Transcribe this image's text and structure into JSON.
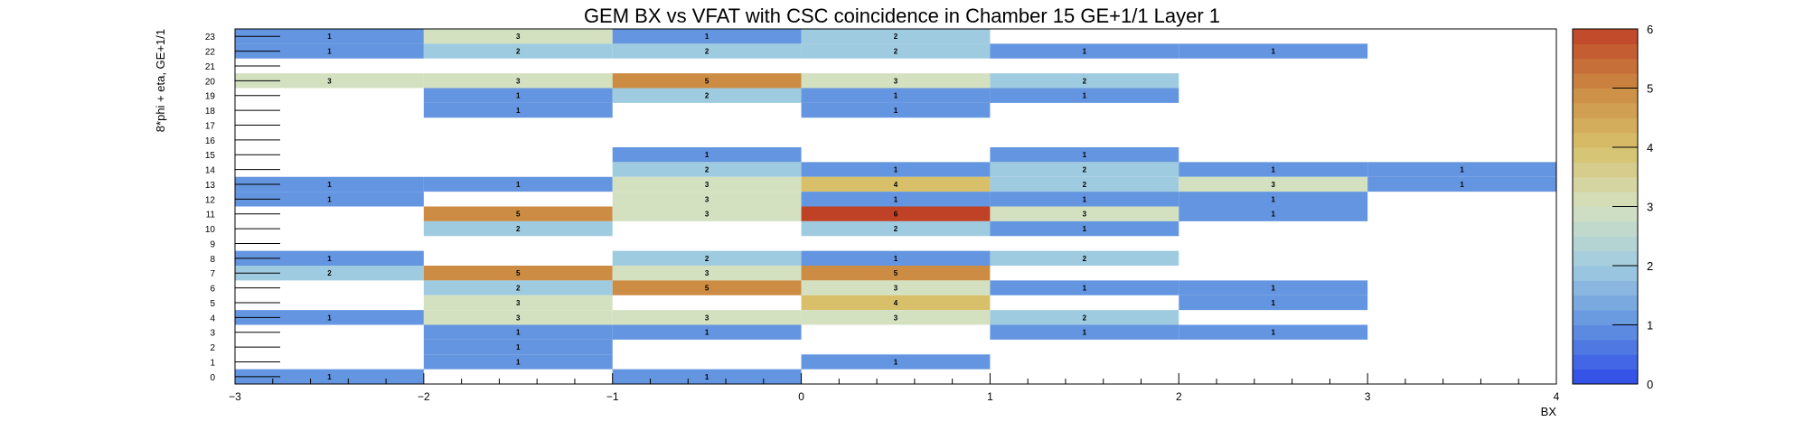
{
  "chart_data": {
    "type": "heatmap",
    "title": "GEM BX vs VFAT with CSC coincidence in Chamber 15 GE+1/1 Layer 1",
    "xlabel": "BX",
    "ylabel": "8*phi + eta, GE+1/1",
    "xlim": [
      -3,
      4
    ],
    "ylim": [
      0,
      23
    ],
    "x_tick_labels": [
      "−3",
      "−2",
      "−1",
      "0",
      "1",
      "2",
      "3",
      "4"
    ],
    "y_tick_labels": [
      "0",
      "1",
      "2",
      "3",
      "4",
      "5",
      "6",
      "7",
      "8",
      "9",
      "10",
      "11",
      "12",
      "13",
      "14",
      "15",
      "16",
      "17",
      "18",
      "19",
      "20",
      "21",
      "22",
      "23"
    ],
    "bin_width": 1,
    "colorbar": {
      "min": 0,
      "max": 6,
      "tick_labels": [
        "0",
        "1",
        "2",
        "3",
        "4",
        "5",
        "6"
      ]
    },
    "colors": {
      "c1": "#6495e0",
      "c2": "#9fcbe0",
      "c3": "#d4e1c1",
      "c4": "#d8c06a",
      "c5": "#cc8c44",
      "c6": "#bf4226"
    },
    "cells": [
      {
        "x": -2.5,
        "y": 23,
        "value": 1
      },
      {
        "x": -1.5,
        "y": 23,
        "value": 3
      },
      {
        "x": -0.5,
        "y": 23,
        "value": 1
      },
      {
        "x": 0.5,
        "y": 23,
        "value": 2
      },
      {
        "x": -2.5,
        "y": 22,
        "value": 1
      },
      {
        "x": -1.5,
        "y": 22,
        "value": 2
      },
      {
        "x": -0.5,
        "y": 22,
        "value": 2
      },
      {
        "x": 0.5,
        "y": 22,
        "value": 2
      },
      {
        "x": 1.5,
        "y": 22,
        "value": 1
      },
      {
        "x": 2.5,
        "y": 22,
        "value": 1
      },
      {
        "x": -2.5,
        "y": 20,
        "value": 3
      },
      {
        "x": -1.5,
        "y": 20,
        "value": 3
      },
      {
        "x": -0.5,
        "y": 20,
        "value": 5
      },
      {
        "x": 0.5,
        "y": 20,
        "value": 3
      },
      {
        "x": 1.5,
        "y": 20,
        "value": 2
      },
      {
        "x": -1.5,
        "y": 19,
        "value": 1
      },
      {
        "x": -0.5,
        "y": 19,
        "value": 2
      },
      {
        "x": 0.5,
        "y": 19,
        "value": 1
      },
      {
        "x": 1.5,
        "y": 19,
        "value": 1
      },
      {
        "x": -1.5,
        "y": 18,
        "value": 1
      },
      {
        "x": 0.5,
        "y": 18,
        "value": 1
      },
      {
        "x": -0.5,
        "y": 15,
        "value": 1
      },
      {
        "x": 1.5,
        "y": 15,
        "value": 1
      },
      {
        "x": -0.5,
        "y": 14,
        "value": 2
      },
      {
        "x": 0.5,
        "y": 14,
        "value": 1
      },
      {
        "x": 1.5,
        "y": 14,
        "value": 2
      },
      {
        "x": 2.5,
        "y": 14,
        "value": 1
      },
      {
        "x": 3.5,
        "y": 14,
        "value": 1
      },
      {
        "x": -2.5,
        "y": 13,
        "value": 1
      },
      {
        "x": -1.5,
        "y": 13,
        "value": 1
      },
      {
        "x": -0.5,
        "y": 13,
        "value": 3
      },
      {
        "x": 0.5,
        "y": 13,
        "value": 4
      },
      {
        "x": 1.5,
        "y": 13,
        "value": 2
      },
      {
        "x": 2.5,
        "y": 13,
        "value": 3
      },
      {
        "x": 3.5,
        "y": 13,
        "value": 1
      },
      {
        "x": -2.5,
        "y": 12,
        "value": 1
      },
      {
        "x": -0.5,
        "y": 12,
        "value": 3
      },
      {
        "x": 0.5,
        "y": 12,
        "value": 1
      },
      {
        "x": 1.5,
        "y": 12,
        "value": 1
      },
      {
        "x": 2.5,
        "y": 12,
        "value": 1
      },
      {
        "x": -1.5,
        "y": 11,
        "value": 5
      },
      {
        "x": -0.5,
        "y": 11,
        "value": 3
      },
      {
        "x": 0.5,
        "y": 11,
        "value": 6
      },
      {
        "x": 1.5,
        "y": 11,
        "value": 3
      },
      {
        "x": 2.5,
        "y": 11,
        "value": 1
      },
      {
        "x": -1.5,
        "y": 10,
        "value": 2
      },
      {
        "x": 0.5,
        "y": 10,
        "value": 2
      },
      {
        "x": 1.5,
        "y": 10,
        "value": 1
      },
      {
        "x": -2.5,
        "y": 8,
        "value": 1
      },
      {
        "x": -0.5,
        "y": 8,
        "value": 2
      },
      {
        "x": 0.5,
        "y": 8,
        "value": 1
      },
      {
        "x": 1.5,
        "y": 8,
        "value": 2
      },
      {
        "x": -2.5,
        "y": 7,
        "value": 2
      },
      {
        "x": -1.5,
        "y": 7,
        "value": 5
      },
      {
        "x": -0.5,
        "y": 7,
        "value": 3
      },
      {
        "x": 0.5,
        "y": 7,
        "value": 5
      },
      {
        "x": -1.5,
        "y": 6,
        "value": 2
      },
      {
        "x": -0.5,
        "y": 6,
        "value": 5
      },
      {
        "x": 0.5,
        "y": 6,
        "value": 3
      },
      {
        "x": 1.5,
        "y": 6,
        "value": 1
      },
      {
        "x": 2.5,
        "y": 6,
        "value": 1
      },
      {
        "x": -1.5,
        "y": 5,
        "value": 3
      },
      {
        "x": 0.5,
        "y": 5,
        "value": 4
      },
      {
        "x": 2.5,
        "y": 5,
        "value": 1
      },
      {
        "x": -2.5,
        "y": 4,
        "value": 1
      },
      {
        "x": -1.5,
        "y": 4,
        "value": 3
      },
      {
        "x": -0.5,
        "y": 4,
        "value": 3
      },
      {
        "x": 0.5,
        "y": 4,
        "value": 3
      },
      {
        "x": 1.5,
        "y": 4,
        "value": 2
      },
      {
        "x": -1.5,
        "y": 3,
        "value": 1
      },
      {
        "x": -0.5,
        "y": 3,
        "value": 1
      },
      {
        "x": 1.5,
        "y": 3,
        "value": 1
      },
      {
        "x": 2.5,
        "y": 3,
        "value": 1
      },
      {
        "x": -1.5,
        "y": 2,
        "value": 1
      },
      {
        "x": -1.5,
        "y": 1,
        "value": 1
      },
      {
        "x": 0.5,
        "y": 1,
        "value": 1
      },
      {
        "x": -2.5,
        "y": 0,
        "value": 1
      },
      {
        "x": -0.5,
        "y": 0,
        "value": 1
      }
    ]
  }
}
